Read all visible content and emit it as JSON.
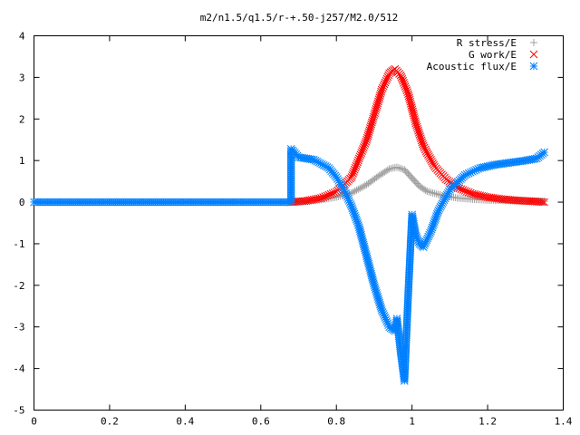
{
  "chart_data": {
    "type": "scatter",
    "title": "m2/n1.5/q1.5/r-+.50-j257/M2.0/512",
    "xlabel": "",
    "ylabel": "",
    "xlim": [
      0,
      1.4
    ],
    "ylim": [
      -5,
      4
    ],
    "x_ticks": [
      "0",
      "0.2",
      "0.4",
      "0.6",
      "0.8",
      "1",
      "1.2",
      "1.4"
    ],
    "y_ticks": [
      "4",
      "3",
      "2",
      "1",
      "0",
      "-1",
      "-2",
      "-3",
      "-4",
      "-5"
    ],
    "grid": false,
    "legend_position": "top-right",
    "series": [
      {
        "name": "R stress/E",
        "marker": "plus",
        "color": "#a0a0a0",
        "x": [
          0.68,
          0.72,
          0.76,
          0.8,
          0.84,
          0.88,
          0.91,
          0.94,
          0.96,
          0.98,
          1.0,
          1.02,
          1.04,
          1.08,
          1.12,
          1.16,
          1.2,
          1.24,
          1.28,
          1.32,
          1.35
        ],
        "y": [
          0.0,
          0.03,
          0.06,
          0.12,
          0.22,
          0.42,
          0.62,
          0.8,
          0.84,
          0.78,
          0.58,
          0.38,
          0.26,
          0.16,
          0.1,
          0.07,
          0.05,
          0.04,
          0.03,
          0.02,
          0.02
        ]
      },
      {
        "name": "G work/E",
        "marker": "cross",
        "color": "#ff0000",
        "x": [
          0.68,
          0.72,
          0.76,
          0.8,
          0.84,
          0.88,
          0.9,
          0.92,
          0.94,
          0.955,
          0.97,
          0.99,
          1.01,
          1.03,
          1.06,
          1.09,
          1.12,
          1.16,
          1.2,
          1.24,
          1.28,
          1.32,
          1.35
        ],
        "y": [
          0.0,
          0.03,
          0.1,
          0.25,
          0.6,
          1.5,
          2.1,
          2.7,
          3.1,
          3.2,
          3.05,
          2.6,
          1.9,
          1.35,
          0.85,
          0.55,
          0.35,
          0.2,
          0.12,
          0.07,
          0.04,
          0.02,
          0.0
        ]
      },
      {
        "name": "Acoustic flux/E",
        "marker": "star",
        "color": "#0080ff",
        "x": [
          0.0,
          0.1,
          0.2,
          0.3,
          0.4,
          0.5,
          0.6,
          0.68,
          0.68,
          0.7,
          0.74,
          0.78,
          0.8,
          0.82,
          0.84,
          0.86,
          0.88,
          0.9,
          0.92,
          0.94,
          0.955,
          0.96,
          0.97,
          0.98,
          0.99,
          1.0,
          1.01,
          1.02,
          1.03,
          1.05,
          1.07,
          1.1,
          1.14,
          1.18,
          1.22,
          1.26,
          1.3,
          1.33,
          1.35
        ],
        "y": [
          0.0,
          0.0,
          0.0,
          0.0,
          0.0,
          0.0,
          0.0,
          0.0,
          1.28,
          1.08,
          1.02,
          0.82,
          0.6,
          0.3,
          -0.1,
          -0.6,
          -1.3,
          -2.0,
          -2.6,
          -3.0,
          -3.1,
          -2.8,
          -3.6,
          -4.3,
          -2.2,
          -0.3,
          -0.8,
          -1.0,
          -1.08,
          -0.7,
          -0.2,
          0.3,
          0.65,
          0.82,
          0.9,
          0.95,
          1.0,
          1.05,
          1.2
        ]
      }
    ]
  }
}
